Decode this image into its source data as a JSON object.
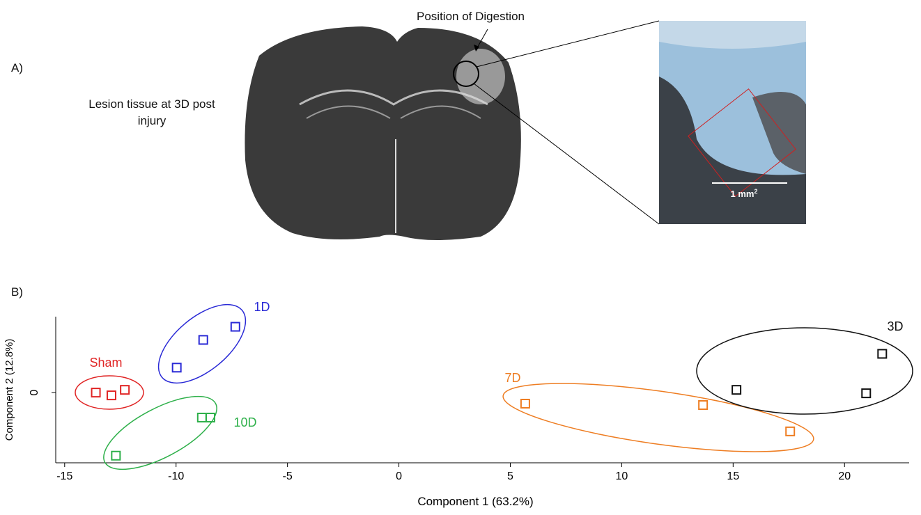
{
  "figure": {
    "panel_a": {
      "label": "A)",
      "caption": "Lesion tissue at 3D post injury",
      "annotation": "Position of Digestion",
      "scale_text": "1 mm",
      "scale_sup": "2"
    },
    "panel_b": {
      "label": "B)"
    }
  },
  "chart_data": {
    "type": "scatter",
    "x_label": "Component 1 (63.2%)",
    "y_label": "Component 2 (12.8%)",
    "xlim": [
      -15.4,
      22.9
    ],
    "ylim": [
      -6.1,
      6.6
    ],
    "xticks": [
      -15,
      -10,
      -5,
      0,
      5,
      10,
      15,
      20
    ],
    "yticks": [
      0
    ],
    "series": [
      {
        "name": "Sham",
        "color": "#e02424",
        "x": [
          -13.6,
          -12.9,
          -12.3
        ],
        "values": [
          0,
          -0.24,
          0.24
        ]
      },
      {
        "name": "1D",
        "color": "#2a2ad6",
        "x": [
          -9.97,
          -8.78,
          -7.34
        ],
        "values": [
          2.17,
          4.58,
          5.72
        ]
      },
      {
        "name": "10D",
        "color": "#2eb04a",
        "x": [
          -12.7,
          -8.84,
          -8.46
        ],
        "values": [
          -5.48,
          -2.17,
          -2.17
        ]
      },
      {
        "name": "7D",
        "color": "#ee7d22",
        "x": [
          5.67,
          13.65,
          17.56
        ],
        "values": [
          -0.96,
          -1.08,
          -3.37
        ]
      },
      {
        "name": "3D",
        "color": "#111111",
        "x": [
          15.15,
          20.97,
          21.69
        ],
        "values": [
          0.24,
          -0.06,
          3.37
        ]
      }
    ]
  }
}
